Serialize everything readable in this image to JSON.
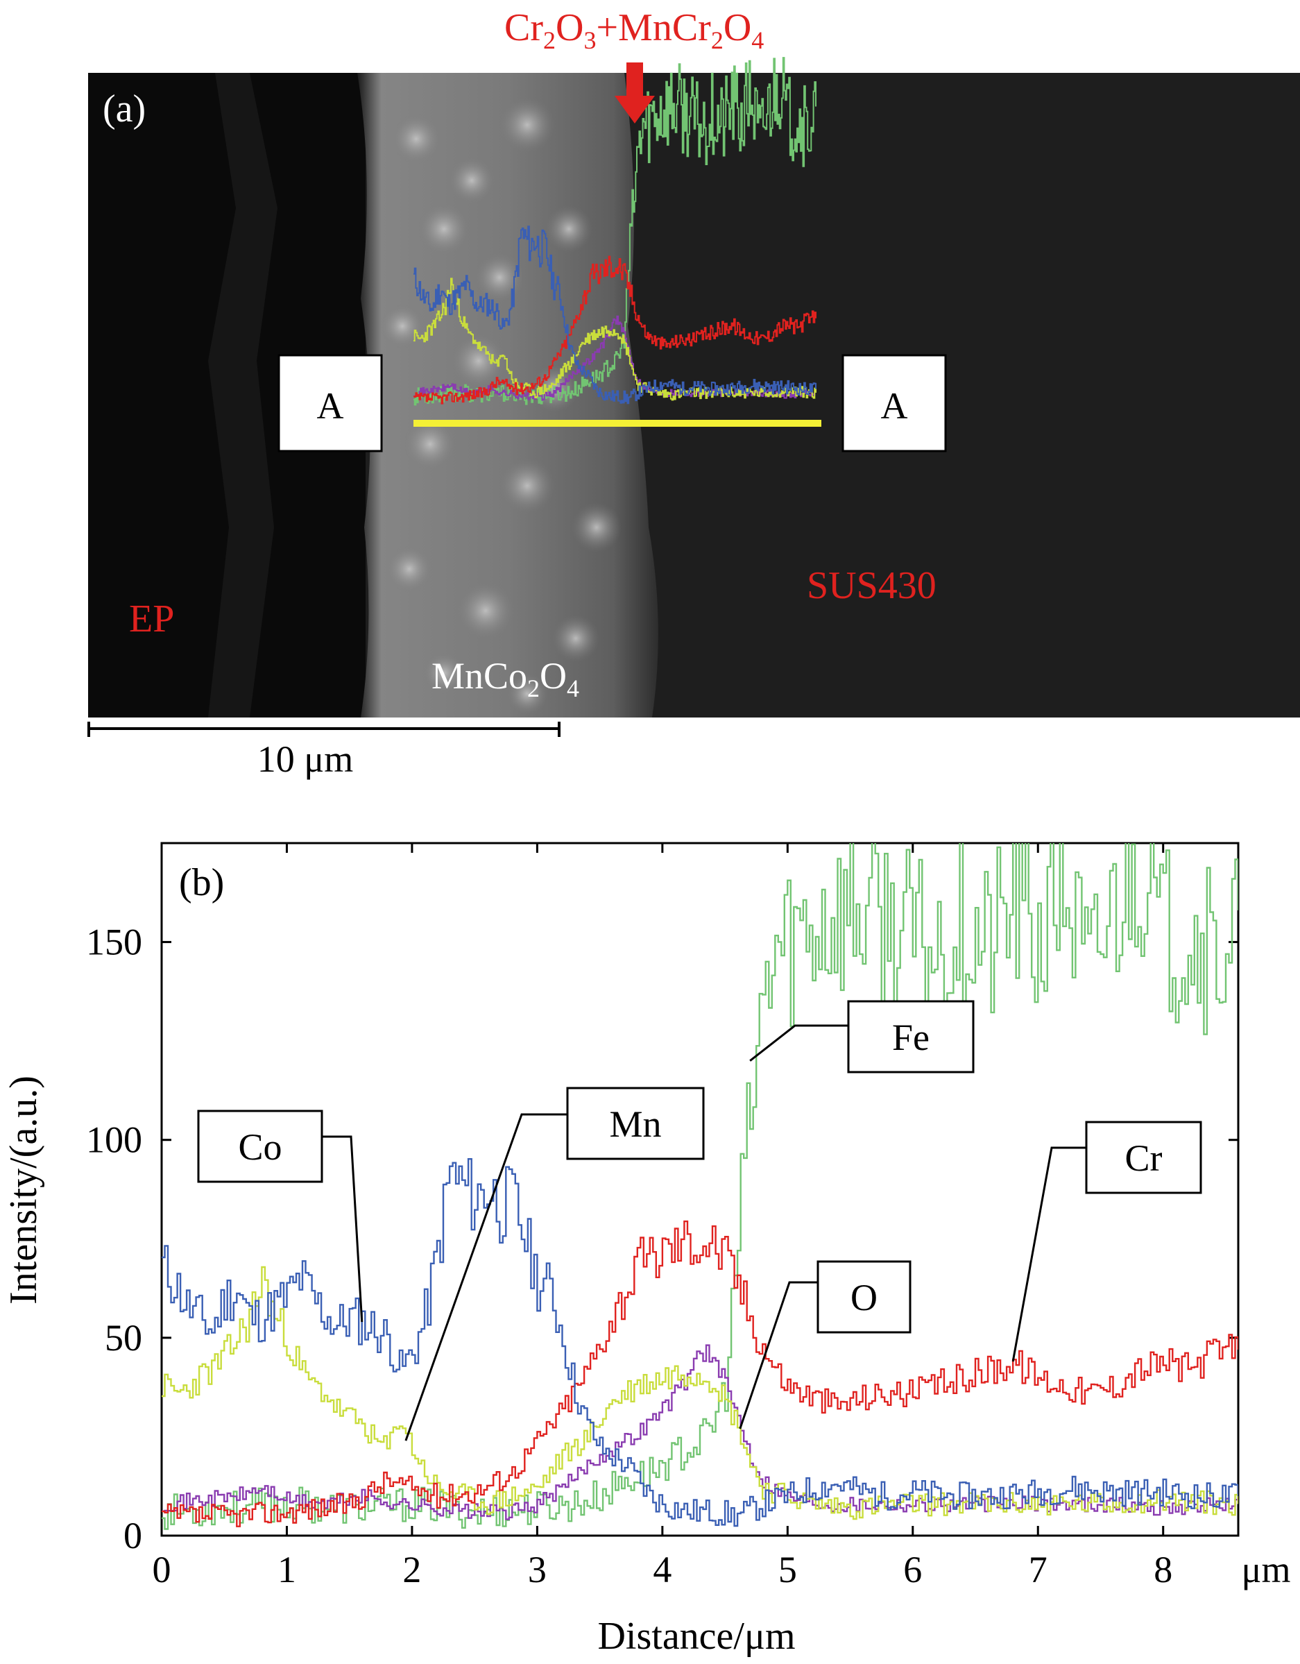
{
  "colors": {
    "Co": "#3a5fb4",
    "Mn": "#c9dd3c",
    "Cr": "#e0221f",
    "Fe": "#72c472",
    "O": "#8a3cb0",
    "annotation_red": "#e0221f",
    "sem_line": "#f4f035"
  },
  "panel_a": {
    "panel_label": "(a)",
    "arrow_label": {
      "p1": "Cr",
      "s1": "2",
      "p2": "O",
      "s2": "3",
      "p3": "+MnCr",
      "s3": "2",
      "p4": "O",
      "s4": "4"
    },
    "marker_left": "A",
    "marker_right": "A",
    "label_ep": "EP",
    "label_sus": "SUS430",
    "label_coating": {
      "p1": "MnCo",
      "s1": "2",
      "p2": "O",
      "s2": "4"
    },
    "scale_bar": "10 μm"
  },
  "chart_data": {
    "type": "line",
    "panel_label": "(b)",
    "xlabel": "Distance/μm",
    "ylabel": "Intensity/(a.u.)",
    "x_unit_label": "μm",
    "xlim": [
      0,
      8.6
    ],
    "ylim": [
      0,
      175
    ],
    "xticks": [
      0,
      1,
      2,
      3,
      4,
      5,
      6,
      7,
      8
    ],
    "yticks": [
      0,
      50,
      100,
      150
    ],
    "grid": false,
    "legend": "callout boxes",
    "series": [
      {
        "name": "Co",
        "points": [
          [
            0,
            68
          ],
          [
            0.1,
            64
          ],
          [
            0.2,
            58
          ],
          [
            0.3,
            55
          ],
          [
            0.4,
            52
          ],
          [
            0.5,
            60
          ],
          [
            0.6,
            62
          ],
          [
            0.7,
            55
          ],
          [
            0.8,
            55
          ],
          [
            0.9,
            58
          ],
          [
            1.0,
            60
          ],
          [
            1.1,
            65
          ],
          [
            1.2,
            60
          ],
          [
            1.3,
            56
          ],
          [
            1.4,
            53
          ],
          [
            1.5,
            55
          ],
          [
            1.6,
            54
          ],
          [
            1.7,
            52
          ],
          [
            1.8,
            50
          ],
          [
            1.9,
            42
          ],
          [
            2.0,
            46
          ],
          [
            2.1,
            55
          ],
          [
            2.2,
            72
          ],
          [
            2.3,
            92
          ],
          [
            2.4,
            88
          ],
          [
            2.5,
            85
          ],
          [
            2.6,
            88
          ],
          [
            2.7,
            83
          ],
          [
            2.8,
            85
          ],
          [
            2.9,
            75
          ],
          [
            3.0,
            64
          ],
          [
            3.1,
            62
          ],
          [
            3.2,
            50
          ],
          [
            3.3,
            36
          ],
          [
            3.4,
            28
          ],
          [
            3.5,
            22
          ],
          [
            3.6,
            20
          ],
          [
            3.7,
            18
          ],
          [
            3.8,
            14
          ],
          [
            3.9,
            10
          ],
          [
            4.0,
            8
          ],
          [
            4.2,
            6
          ],
          [
            4.4,
            6
          ],
          [
            4.6,
            5
          ],
          [
            4.8,
            8
          ],
          [
            5.0,
            10
          ],
          [
            5.2,
            12
          ],
          [
            5.4,
            13
          ],
          [
            5.6,
            11
          ],
          [
            5.8,
            10
          ],
          [
            6.0,
            11
          ],
          [
            6.3,
            10
          ],
          [
            6.6,
            10
          ],
          [
            7.0,
            11
          ],
          [
            7.3,
            12
          ],
          [
            7.6,
            11
          ],
          [
            8.0,
            11
          ],
          [
            8.3,
            10
          ],
          [
            8.6,
            10
          ]
        ]
      },
      {
        "name": "Mn",
        "points": [
          [
            0,
            38
          ],
          [
            0.1,
            36
          ],
          [
            0.2,
            37
          ],
          [
            0.3,
            40
          ],
          [
            0.4,
            42
          ],
          [
            0.5,
            45
          ],
          [
            0.6,
            50
          ],
          [
            0.7,
            55
          ],
          [
            0.8,
            65
          ],
          [
            0.9,
            55
          ],
          [
            1.0,
            50
          ],
          [
            1.1,
            42
          ],
          [
            1.2,
            38
          ],
          [
            1.3,
            36
          ],
          [
            1.4,
            32
          ],
          [
            1.5,
            30
          ],
          [
            1.6,
            28
          ],
          [
            1.7,
            24
          ],
          [
            1.8,
            22
          ],
          [
            1.9,
            30
          ],
          [
            2.0,
            22
          ],
          [
            2.1,
            16
          ],
          [
            2.2,
            12
          ],
          [
            2.4,
            10
          ],
          [
            2.6,
            8
          ],
          [
            2.8,
            10
          ],
          [
            3.0,
            12
          ],
          [
            3.2,
            20
          ],
          [
            3.4,
            25
          ],
          [
            3.6,
            34
          ],
          [
            3.8,
            38
          ],
          [
            4.0,
            40
          ],
          [
            4.2,
            42
          ],
          [
            4.4,
            40
          ],
          [
            4.6,
            28
          ],
          [
            4.7,
            18
          ],
          [
            4.8,
            12
          ],
          [
            5.0,
            10
          ],
          [
            5.2,
            8
          ],
          [
            5.5,
            7
          ],
          [
            6.0,
            8
          ],
          [
            6.5,
            8
          ],
          [
            7.0,
            8
          ],
          [
            7.5,
            8
          ],
          [
            8.0,
            9
          ],
          [
            8.6,
            8
          ]
        ]
      },
      {
        "name": "Cr",
        "points": [
          [
            0,
            5
          ],
          [
            0.5,
            5
          ],
          [
            1.0,
            6
          ],
          [
            1.5,
            8
          ],
          [
            1.8,
            14
          ],
          [
            2.0,
            12
          ],
          [
            2.2,
            10
          ],
          [
            2.5,
            11
          ],
          [
            2.8,
            16
          ],
          [
            3.0,
            24
          ],
          [
            3.2,
            32
          ],
          [
            3.4,
            42
          ],
          [
            3.6,
            56
          ],
          [
            3.8,
            68
          ],
          [
            4.0,
            72
          ],
          [
            4.2,
            75
          ],
          [
            4.4,
            74
          ],
          [
            4.5,
            70
          ],
          [
            4.6,
            64
          ],
          [
            4.7,
            55
          ],
          [
            4.8,
            48
          ],
          [
            4.9,
            42
          ],
          [
            5.0,
            38
          ],
          [
            5.2,
            35
          ],
          [
            5.4,
            33
          ],
          [
            5.6,
            35
          ],
          [
            5.8,
            36
          ],
          [
            6.0,
            36
          ],
          [
            6.2,
            38
          ],
          [
            6.4,
            40
          ],
          [
            6.6,
            42
          ],
          [
            6.8,
            44
          ],
          [
            7.0,
            40
          ],
          [
            7.2,
            38
          ],
          [
            7.4,
            36
          ],
          [
            7.6,
            38
          ],
          [
            7.8,
            42
          ],
          [
            8.0,
            44
          ],
          [
            8.2,
            42
          ],
          [
            8.4,
            46
          ],
          [
            8.6,
            47
          ]
        ]
      },
      {
        "name": "Fe",
        "points": [
          [
            0,
            6
          ],
          [
            0.5,
            7
          ],
          [
            1.0,
            8
          ],
          [
            1.5,
            7
          ],
          [
            2.0,
            8
          ],
          [
            2.5,
            6
          ],
          [
            3.0,
            7
          ],
          [
            3.3,
            8
          ],
          [
            3.5,
            10
          ],
          [
            3.7,
            14
          ],
          [
            3.9,
            16
          ],
          [
            4.1,
            20
          ],
          [
            4.3,
            24
          ],
          [
            4.4,
            28
          ],
          [
            4.5,
            38
          ],
          [
            4.55,
            55
          ],
          [
            4.6,
            75
          ],
          [
            4.65,
            95
          ],
          [
            4.7,
            105
          ],
          [
            4.75,
            120
          ],
          [
            4.8,
            135
          ],
          [
            4.9,
            148
          ],
          [
            5.0,
            150
          ],
          [
            5.2,
            155
          ],
          [
            5.4,
            158
          ],
          [
            5.6,
            158
          ],
          [
            5.8,
            155
          ],
          [
            6.0,
            150
          ],
          [
            6.2,
            148
          ],
          [
            6.4,
            155
          ],
          [
            6.6,
            148
          ],
          [
            6.8,
            160
          ],
          [
            7.0,
            150
          ],
          [
            7.2,
            165
          ],
          [
            7.4,
            140
          ],
          [
            7.6,
            160
          ],
          [
            7.8,
            172
          ],
          [
            8.0,
            150
          ],
          [
            8.2,
            155
          ],
          [
            8.4,
            145
          ],
          [
            8.6,
            158
          ]
        ]
      },
      {
        "name": "O",
        "points": [
          [
            0,
            8
          ],
          [
            0.3,
            9
          ],
          [
            0.6,
            10
          ],
          [
            0.8,
            12
          ],
          [
            1.0,
            9
          ],
          [
            1.3,
            8
          ],
          [
            1.6,
            10
          ],
          [
            1.9,
            8
          ],
          [
            2.2,
            7
          ],
          [
            2.5,
            6
          ],
          [
            2.8,
            6
          ],
          [
            3.0,
            8
          ],
          [
            3.2,
            12
          ],
          [
            3.4,
            18
          ],
          [
            3.6,
            22
          ],
          [
            3.8,
            26
          ],
          [
            4.0,
            32
          ],
          [
            4.2,
            40
          ],
          [
            4.3,
            48
          ],
          [
            4.4,
            44
          ],
          [
            4.5,
            38
          ],
          [
            4.6,
            30
          ],
          [
            4.7,
            20
          ],
          [
            4.8,
            14
          ],
          [
            5.0,
            10
          ],
          [
            5.3,
            8
          ],
          [
            5.6,
            8
          ],
          [
            6.0,
            8
          ],
          [
            6.5,
            8
          ],
          [
            7.0,
            8
          ],
          [
            7.5,
            8
          ],
          [
            8.0,
            7
          ],
          [
            8.6,
            8
          ]
        ]
      }
    ],
    "callouts": [
      {
        "label": "Co",
        "series": "Co",
        "x": 1.6,
        "y": 54
      },
      {
        "label": "Mn",
        "series": "Mn",
        "x": 1.95,
        "y": 24
      },
      {
        "label": "Fe",
        "series": "Fe",
        "x": 4.7,
        "y": 120
      },
      {
        "label": "O",
        "series": "O",
        "x": 4.62,
        "y": 27
      },
      {
        "label": "Cr",
        "series": "Cr",
        "x": 6.8,
        "y": 44
      }
    ]
  }
}
